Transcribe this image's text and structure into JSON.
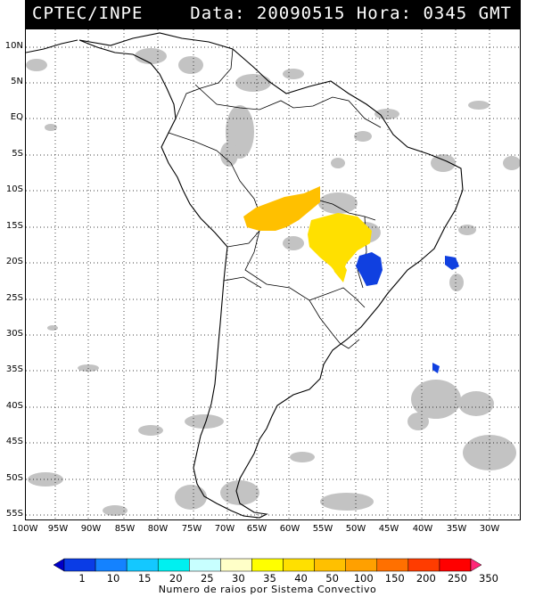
{
  "header": {
    "source": "CPTEC/INPE",
    "datetime": "Data: 20090515 Hora: 0345 GMT"
  },
  "map": {
    "lat_labels": [
      "10N",
      "5N",
      "EQ",
      "5S",
      "10S",
      "15S",
      "20S",
      "25S",
      "30S",
      "35S",
      "40S",
      "45S",
      "50S",
      "55S"
    ],
    "lon_labels": [
      "100W",
      "95W",
      "90W",
      "85W",
      "80W",
      "75W",
      "70W",
      "65W",
      "60W",
      "55W",
      "50W",
      "45W",
      "40W",
      "35W",
      "30W"
    ],
    "colors": {
      "cloud": "#bdbdbd",
      "coast": "#000000",
      "grid": "#000000",
      "storm_low": "#ffc000",
      "storm_mid": "#ffe000",
      "storm_blue": "#1040e0"
    }
  },
  "legend": {
    "values": [
      "1",
      "10",
      "15",
      "20",
      "25",
      "30",
      "35",
      "40",
      "50",
      "100",
      "150",
      "200",
      "250",
      "350"
    ],
    "colors": [
      "#0000c8",
      "#0a3ce6",
      "#1482ff",
      "#14c8ff",
      "#00f0f0",
      "#c8ffff",
      "#ffffc8",
      "#ffff00",
      "#ffe000",
      "#ffc000",
      "#ffa000",
      "#ff7000",
      "#ff3c00",
      "#ff0000",
      "#ff2878"
    ],
    "caption": "Numero de raios por Sistema Convectivo"
  }
}
